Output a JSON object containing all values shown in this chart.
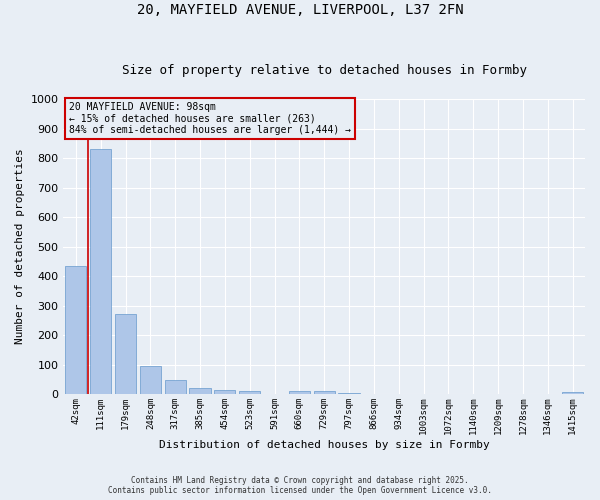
{
  "title1": "20, MAYFIELD AVENUE, LIVERPOOL, L37 2FN",
  "title2": "Size of property relative to detached houses in Formby",
  "xlabel": "Distribution of detached houses by size in Formby",
  "ylabel": "Number of detached properties",
  "categories": [
    "42sqm",
    "111sqm",
    "179sqm",
    "248sqm",
    "317sqm",
    "385sqm",
    "454sqm",
    "523sqm",
    "591sqm",
    "660sqm",
    "729sqm",
    "797sqm",
    "866sqm",
    "934sqm",
    "1003sqm",
    "1072sqm",
    "1140sqm",
    "1209sqm",
    "1278sqm",
    "1346sqm",
    "1415sqm"
  ],
  "values": [
    435,
    830,
    270,
    95,
    47,
    20,
    14,
    10,
    0,
    10,
    10,
    5,
    0,
    0,
    0,
    0,
    0,
    0,
    0,
    0,
    8
  ],
  "bar_color": "#aec6e8",
  "bar_edge_color": "#6699cc",
  "vline_color": "#cc0000",
  "vline_x": 0.5,
  "annotation_title": "20 MAYFIELD AVENUE: 98sqm",
  "annotation_line2": "← 15% of detached houses are smaller (263)",
  "annotation_line3": "84% of semi-detached houses are larger (1,444) →",
  "annotation_box_color": "#cc0000",
  "background_color": "#e8eef5",
  "ylim": [
    0,
    1000
  ],
  "yticks": [
    0,
    100,
    200,
    300,
    400,
    500,
    600,
    700,
    800,
    900,
    1000
  ],
  "footer1": "Contains HM Land Registry data © Crown copyright and database right 2025.",
  "footer2": "Contains public sector information licensed under the Open Government Licence v3.0."
}
